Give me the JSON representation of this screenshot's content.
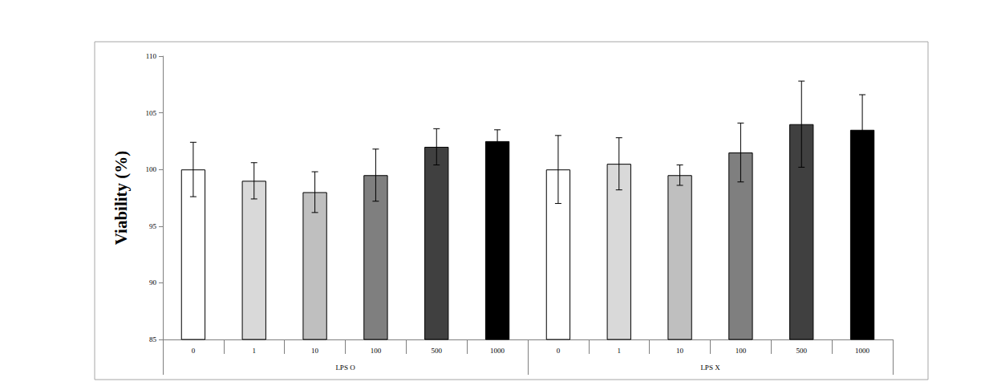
{
  "chart_data": {
    "type": "bar",
    "y_label": "Viability (%)",
    "groups": [
      {
        "label": "LPS O",
        "categories": [
          "0",
          "1",
          "10",
          "100",
          "500",
          "1000"
        ],
        "values": [
          100,
          99,
          98,
          99.5,
          102,
          102.5
        ],
        "errors": [
          2.4,
          1.6,
          1.8,
          2.3,
          1.6,
          1.0
        ],
        "colors": [
          "#ffffff",
          "#d9d9d9",
          "#bfbfbf",
          "#7f7f7f",
          "#404040",
          "#000000"
        ]
      },
      {
        "label": "LPS X",
        "categories": [
          "0",
          "1",
          "10",
          "100",
          "500",
          "1000"
        ],
        "values": [
          100,
          100.5,
          99.5,
          101.5,
          104,
          103.5
        ],
        "errors": [
          3.0,
          2.3,
          0.9,
          2.6,
          3.8,
          3.1
        ],
        "colors": [
          "#ffffff",
          "#d9d9d9",
          "#bfbfbf",
          "#7f7f7f",
          "#404040",
          "#000000"
        ]
      }
    ],
    "ylim": [
      85,
      110
    ],
    "yticks": [
      85,
      90,
      95,
      100,
      105,
      110
    ],
    "grid": false
  }
}
